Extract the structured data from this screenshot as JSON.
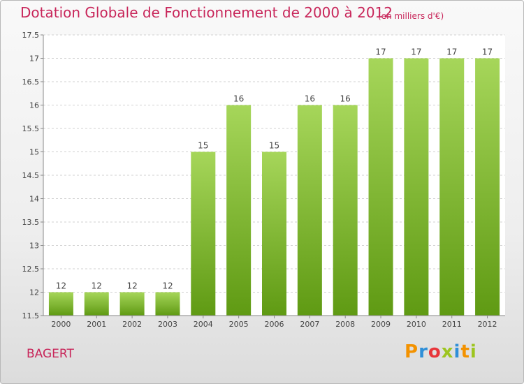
{
  "header": {
    "title": "Dotation Globale de Fonctionnement de 2000 à 2012",
    "subtitle": "(en milliers d'€)"
  },
  "footer": {
    "commune": "BAGERT",
    "logo": "Proxiti"
  },
  "colors": {
    "title": "#c8265a",
    "bar_light": "#a6d65a",
    "bar_dark": "#5f9a13",
    "logo_p": "#f39200",
    "logo_r": "#2f8fd8",
    "logo_o": "#e8353a",
    "logo_x": "#9dc51f",
    "logo_i": "#2f8fd8",
    "logo_t": "#f39200",
    "logo_i2": "#9dc51f"
  },
  "chart_data": {
    "type": "bar",
    "title": "Dotation Globale de Fonctionnement de 2000 à 2012",
    "subtitle": "(en milliers d'€)",
    "categories": [
      "2000",
      "2001",
      "2002",
      "2003",
      "2004",
      "2005",
      "2006",
      "2007",
      "2008",
      "2009",
      "2010",
      "2011",
      "2012"
    ],
    "values": [
      12,
      12,
      12,
      12,
      15,
      16,
      15,
      16,
      16,
      17,
      17,
      17,
      17
    ],
    "data_labels": [
      "12",
      "12",
      "12",
      "12",
      "15",
      "16",
      "15",
      "16",
      "16",
      "17",
      "17",
      "17",
      "17"
    ],
    "ylim": [
      11.5,
      17.5
    ],
    "yticks": [
      "11.5",
      "12",
      "12.5",
      "13",
      "13.5",
      "14",
      "14.5",
      "15",
      "15.5",
      "16",
      "16.5",
      "17",
      "17.5"
    ],
    "grid": true,
    "legend": "none"
  }
}
